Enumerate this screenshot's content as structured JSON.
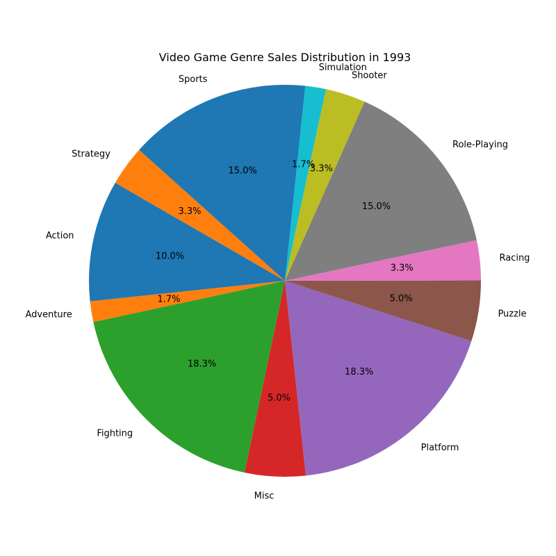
{
  "chart_data": {
    "type": "pie",
    "title": "Video Game Genre Sales Distribution in 1993",
    "categories": [
      "Action",
      "Adventure",
      "Fighting",
      "Misc",
      "Platform",
      "Puzzle",
      "Racing",
      "Role-Playing",
      "Shooter",
      "Simulation",
      "Sports",
      "Strategy"
    ],
    "values": [
      10.0,
      1.7,
      18.3,
      5.0,
      18.3,
      5.0,
      3.3,
      15.0,
      3.3,
      1.7,
      15.0,
      3.3
    ],
    "value_labels": [
      "10.0%",
      "1.7%",
      "18.3%",
      "5.0%",
      "18.3%",
      "5.0%",
      "3.3%",
      "15.0%",
      "3.3%",
      "1.7%",
      "15.0%",
      "3.3%"
    ],
    "colors": [
      "#1f77b4",
      "#ff7f0e",
      "#2ca02c",
      "#d62728",
      "#9467bd",
      "#8c564b",
      "#e377c2",
      "#7f7f7f",
      "#bcbd22",
      "#17becf",
      "#1f77b4",
      "#ff7f0e"
    ],
    "start_angle_deg": 150,
    "direction": "counterclockwise",
    "legend": "none"
  }
}
